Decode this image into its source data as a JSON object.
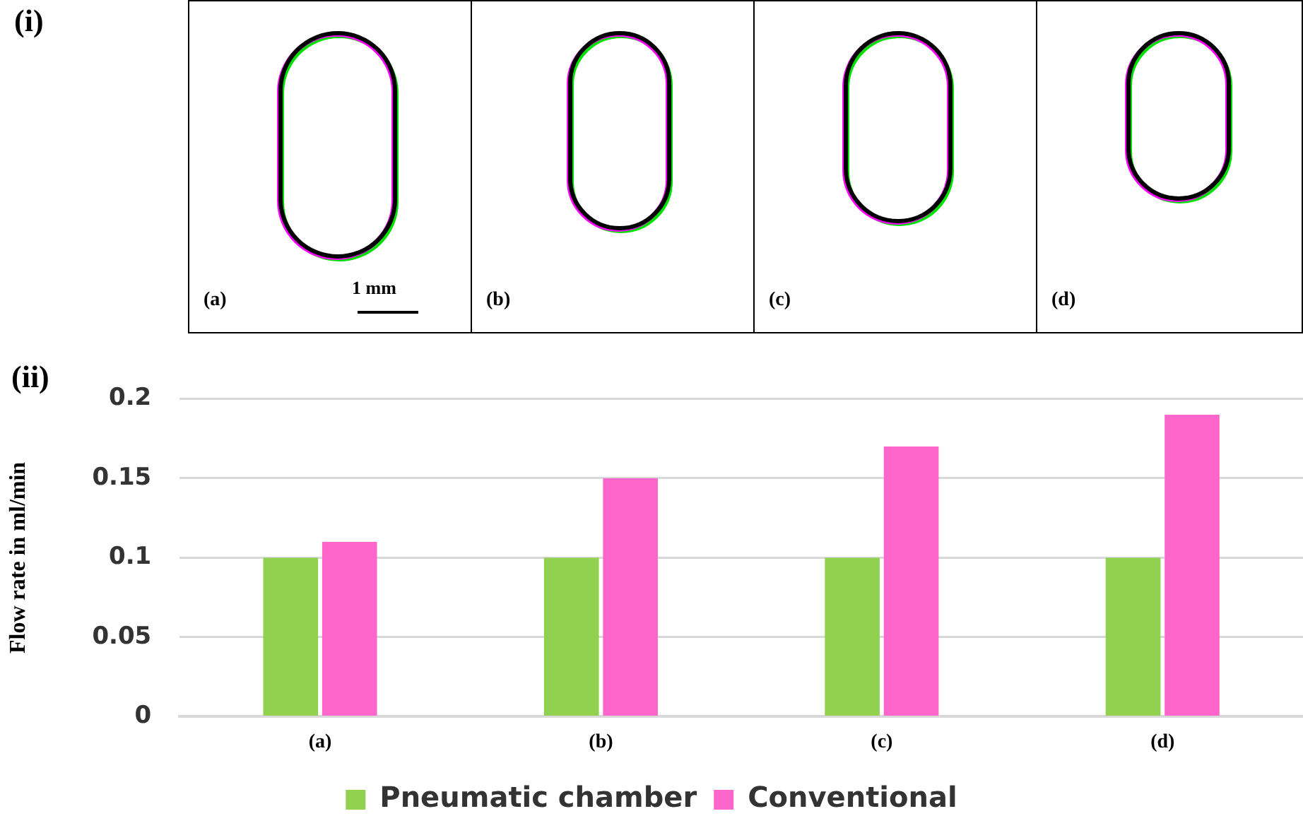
{
  "chart_data": {
    "type": "bar",
    "ylabel": "Flow rate in ml/min",
    "categories": [
      "(a)",
      "(b)",
      "(c)",
      "(d)"
    ],
    "series": [
      {
        "name": "Pneumatic chamber",
        "color": "#92d050",
        "values": [
          0.1,
          0.1,
          0.1,
          0.1
        ]
      },
      {
        "name": "Conventional",
        "color": "#ff66cc",
        "values": [
          0.11,
          0.15,
          0.17,
          0.19
        ]
      }
    ],
    "ylim": [
      0,
      0.2
    ],
    "yticks": [
      0,
      0.05,
      0.1,
      0.15,
      0.2
    ],
    "grid": "y",
    "legend": "bottom",
    "annotations": [
      "(i)",
      "(ii)",
      "(a)",
      "(b)",
      "(c)",
      "(d)",
      "1 mm"
    ]
  }
}
